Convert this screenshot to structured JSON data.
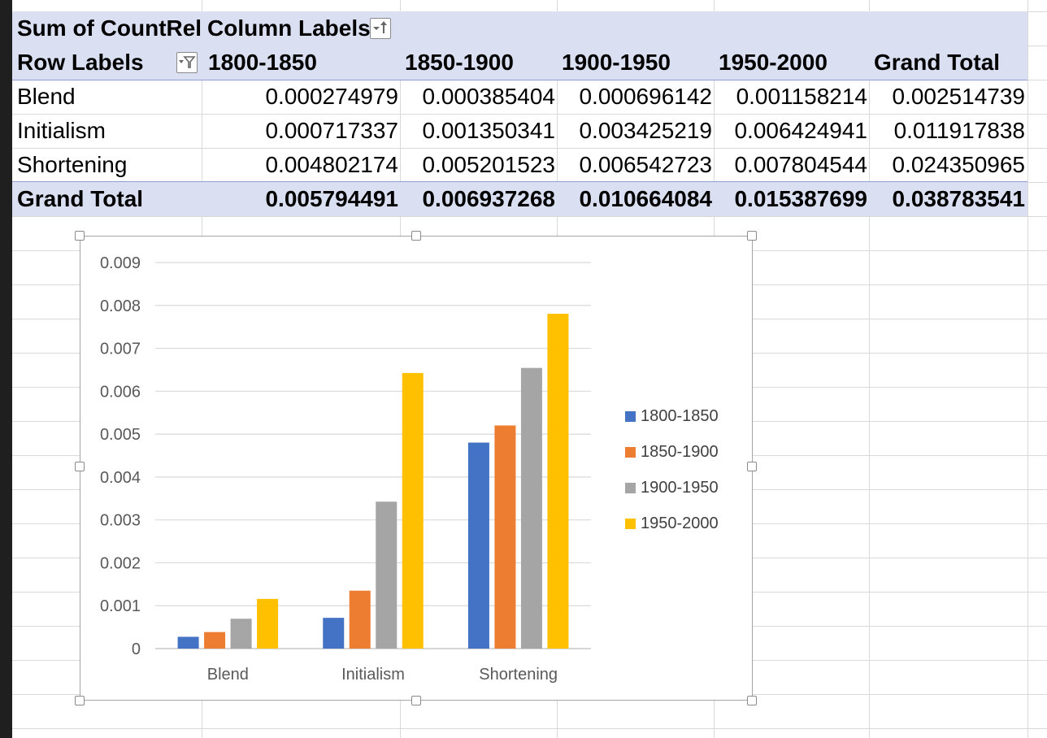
{
  "pivot": {
    "header1": [
      "Sum of CountRel",
      "Column Labels"
    ],
    "row_labels_header": "Row Labels",
    "columns": [
      "1800-1850",
      "1850-1900",
      "1900-1950",
      "1950-2000",
      "Grand Total"
    ],
    "rows": [
      {
        "label": "Blend",
        "values": [
          "0.000274979",
          "0.000385404",
          "0.000696142",
          "0.001158214",
          "0.002514739"
        ]
      },
      {
        "label": "Initialism",
        "values": [
          "0.000717337",
          "0.001350341",
          "0.003425219",
          "0.006424941",
          "0.011917838"
        ]
      },
      {
        "label": "Shortening",
        "values": [
          "0.004802174",
          "0.005201523",
          "0.006542723",
          "0.007804544",
          "0.024350965"
        ]
      }
    ],
    "grand_total": {
      "label": "Grand Total",
      "values": [
        "0.005794491",
        "0.006937268",
        "0.010664084",
        "0.015387699",
        "0.038783541"
      ]
    }
  },
  "chart_data": {
    "type": "bar",
    "categories": [
      "Blend",
      "Initialism",
      "Shortening"
    ],
    "series": [
      {
        "name": "1800-1850",
        "color": "#4472c4",
        "values": [
          0.000274979,
          0.000717337,
          0.004802174
        ]
      },
      {
        "name": "1850-1900",
        "color": "#ed7d31",
        "values": [
          0.000385404,
          0.001350341,
          0.005201523
        ]
      },
      {
        "name": "1900-1950",
        "color": "#a5a5a5",
        "values": [
          0.000696142,
          0.003425219,
          0.006542723
        ]
      },
      {
        "name": "1950-2000",
        "color": "#ffc000",
        "values": [
          0.001158214,
          0.006424941,
          0.007804544
        ]
      }
    ],
    "ylim": [
      0,
      0.009
    ],
    "yticks": [
      "0",
      "0.001",
      "0.002",
      "0.003",
      "0.004",
      "0.005",
      "0.006",
      "0.007",
      "0.008",
      "0.009"
    ],
    "grid": true,
    "legend": "right"
  }
}
